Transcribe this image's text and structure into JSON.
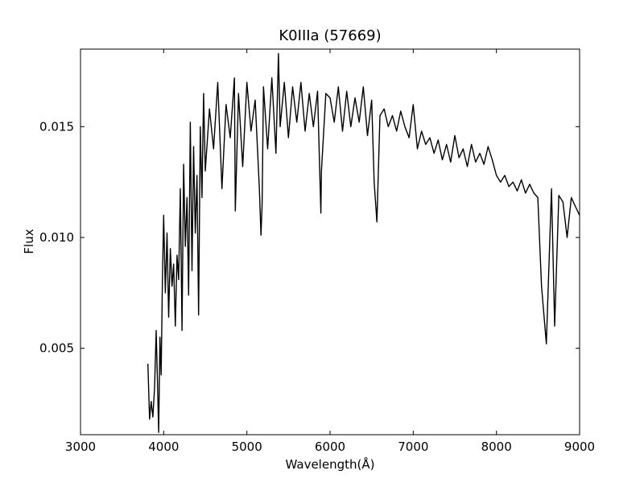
{
  "chart_data": {
    "type": "line",
    "title": "K0IIIa (57669)",
    "xlabel": "Wavelength(Å)",
    "ylabel": "Flux",
    "xlim": [
      3000,
      9000
    ],
    "ylim": [
      0.0011,
      0.0185
    ],
    "x_ticks": [
      3000,
      4000,
      5000,
      6000,
      7000,
      8000,
      9000
    ],
    "x_tick_labels": [
      "3000",
      "4000",
      "5000",
      "6000",
      "7000",
      "8000",
      "9000"
    ],
    "y_ticks": [
      0.005,
      0.01,
      0.015
    ],
    "y_tick_labels": [
      "0.005",
      "0.010",
      "0.015"
    ],
    "grid": false,
    "line_color": "#000000",
    "series": [
      {
        "x": [
          3810,
          3830,
          3850,
          3870,
          3890,
          3910,
          3925,
          3940,
          3955,
          3970,
          3985,
          4000,
          4020,
          4040,
          4060,
          4080,
          4100,
          4120,
          4140,
          4160,
          4180,
          4200,
          4220,
          4240,
          4260,
          4280,
          4300,
          4320,
          4340,
          4360,
          4380,
          4400,
          4420,
          4440,
          4460,
          4480,
          4500,
          4550,
          4600,
          4650,
          4700,
          4750,
          4800,
          4850,
          4861,
          4900,
          4950,
          5000,
          5050,
          5100,
          5150,
          5170,
          5183,
          5200,
          5250,
          5300,
          5350,
          5380,
          5400,
          5450,
          5500,
          5550,
          5600,
          5650,
          5700,
          5750,
          5800,
          5850,
          5890,
          5896,
          5950,
          6000,
          6050,
          6100,
          6150,
          6200,
          6250,
          6300,
          6350,
          6400,
          6450,
          6500,
          6530,
          6563,
          6600,
          6650,
          6700,
          6750,
          6800,
          6850,
          6900,
          6950,
          7000,
          7050,
          7100,
          7150,
          7200,
          7250,
          7300,
          7350,
          7400,
          7450,
          7500,
          7550,
          7600,
          7650,
          7700,
          7750,
          7800,
          7850,
          7900,
          7950,
          8000,
          8050,
          8100,
          8150,
          8200,
          8250,
          8300,
          8350,
          8400,
          8450,
          8498,
          8542,
          8600,
          8662,
          8700,
          8750,
          8800,
          8850,
          8900,
          8950,
          9000
        ],
        "y": [
          0.0043,
          0.0018,
          0.0026,
          0.0019,
          0.0032,
          0.0058,
          0.0035,
          0.0012,
          0.0055,
          0.0038,
          0.0082,
          0.011,
          0.0075,
          0.0102,
          0.0064,
          0.0095,
          0.0078,
          0.0088,
          0.006,
          0.0092,
          0.0081,
          0.0122,
          0.0058,
          0.0133,
          0.0096,
          0.0118,
          0.0074,
          0.0152,
          0.0085,
          0.0141,
          0.0102,
          0.0128,
          0.0065,
          0.015,
          0.0118,
          0.0165,
          0.013,
          0.0158,
          0.014,
          0.017,
          0.0122,
          0.016,
          0.0145,
          0.0172,
          0.0112,
          0.0165,
          0.0132,
          0.017,
          0.0148,
          0.0162,
          0.0122,
          0.0101,
          0.0115,
          0.0168,
          0.014,
          0.0172,
          0.0138,
          0.0183,
          0.015,
          0.017,
          0.0145,
          0.0168,
          0.0152,
          0.017,
          0.0148,
          0.0165,
          0.015,
          0.0166,
          0.0111,
          0.013,
          0.0165,
          0.0163,
          0.0152,
          0.0168,
          0.0148,
          0.0166,
          0.015,
          0.0163,
          0.0152,
          0.0168,
          0.0146,
          0.0162,
          0.0125,
          0.0107,
          0.0155,
          0.0158,
          0.015,
          0.0155,
          0.0148,
          0.0157,
          0.015,
          0.0145,
          0.016,
          0.014,
          0.0148,
          0.0142,
          0.0145,
          0.0138,
          0.0144,
          0.0135,
          0.0142,
          0.0134,
          0.0146,
          0.0136,
          0.014,
          0.0132,
          0.0142,
          0.0134,
          0.0138,
          0.0133,
          0.0141,
          0.0135,
          0.0128,
          0.0125,
          0.0128,
          0.0123,
          0.0125,
          0.0121,
          0.0126,
          0.012,
          0.0124,
          0.012,
          0.0118,
          0.0078,
          0.0052,
          0.0122,
          0.006,
          0.0119,
          0.0116,
          0.01,
          0.0118,
          0.0114,
          0.011
        ]
      }
    ]
  }
}
